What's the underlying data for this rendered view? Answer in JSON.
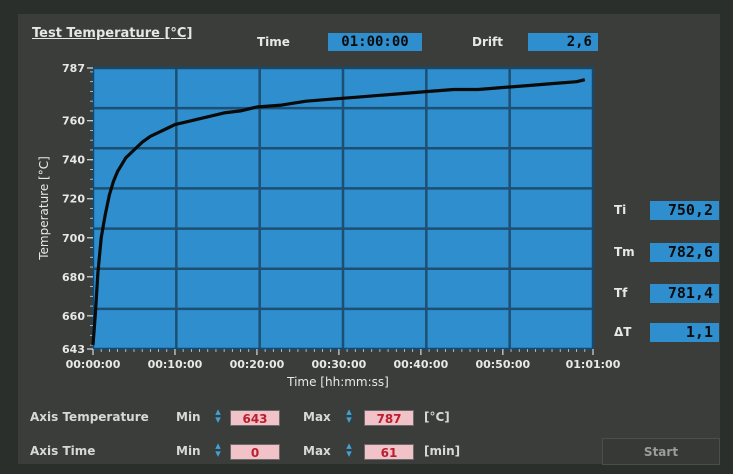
{
  "header": {
    "title": "Test Temperature [°C]",
    "time_label": "Time",
    "time_value": "01:00:00",
    "drift_label": "Drift",
    "drift_value": "2,6"
  },
  "readouts": [
    {
      "label": "Ti",
      "value": "750,2"
    },
    {
      "label": "Tm",
      "value": "782,6"
    },
    {
      "label": "Tf",
      "value": "781,4"
    },
    {
      "label": "ΔT",
      "value": "1,1"
    }
  ],
  "controls": {
    "axis_temperature": {
      "label": "Axis Temperature",
      "min_label": "Min",
      "min_value": "643",
      "max_label": "Max",
      "max_value": "787",
      "unit": "[°C]"
    },
    "axis_time": {
      "label": "Axis Time",
      "min_label": "Min",
      "min_value": "0",
      "max_label": "Max",
      "max_value": "61",
      "unit": "[min]"
    },
    "start_label": "Start"
  },
  "colors": {
    "plot_bg": "#2f8fce",
    "trace": "#0a0a0a",
    "grid": "#1d4f73",
    "field_bg": "#f1c2c8",
    "field_text": "#bb1e2d"
  },
  "chart_data": {
    "type": "line",
    "xlabel": "Time [hh:mm:ss]",
    "ylabel": "Temperature [°C]",
    "xlim": [
      0,
      61
    ],
    "ylim": [
      643,
      787
    ],
    "x_ticks": [
      0,
      10,
      20,
      30,
      40,
      50,
      61
    ],
    "x_tick_labels": [
      "00:00:00",
      "00:10:00",
      "00:20:00",
      "00:30:00",
      "00:40:00",
      "00:50:00",
      "01:01:00"
    ],
    "y_ticks": [
      643,
      660,
      680,
      700,
      720,
      740,
      760,
      787
    ],
    "y_tick_labels": [
      "643",
      "660",
      "680",
      "700",
      "720",
      "740",
      "760",
      "787"
    ],
    "grid": true,
    "series": [
      {
        "x": [
          0,
          0.3,
          0.6,
          1,
          1.5,
          2,
          2.5,
          3,
          4,
          5,
          6,
          7,
          8,
          9,
          10,
          12,
          14,
          16,
          18,
          20,
          23,
          26,
          29,
          32,
          35,
          38,
          41,
          44,
          47,
          50,
          53,
          56,
          59,
          60
        ],
        "y": [
          645,
          662,
          682,
          700,
          712,
          722,
          729,
          734,
          741,
          745,
          749,
          752,
          754,
          756,
          758,
          760,
          762,
          764,
          765,
          767,
          768,
          770,
          771,
          772,
          773,
          774,
          775,
          776,
          776,
          777,
          778,
          779,
          780,
          781
        ]
      }
    ]
  }
}
